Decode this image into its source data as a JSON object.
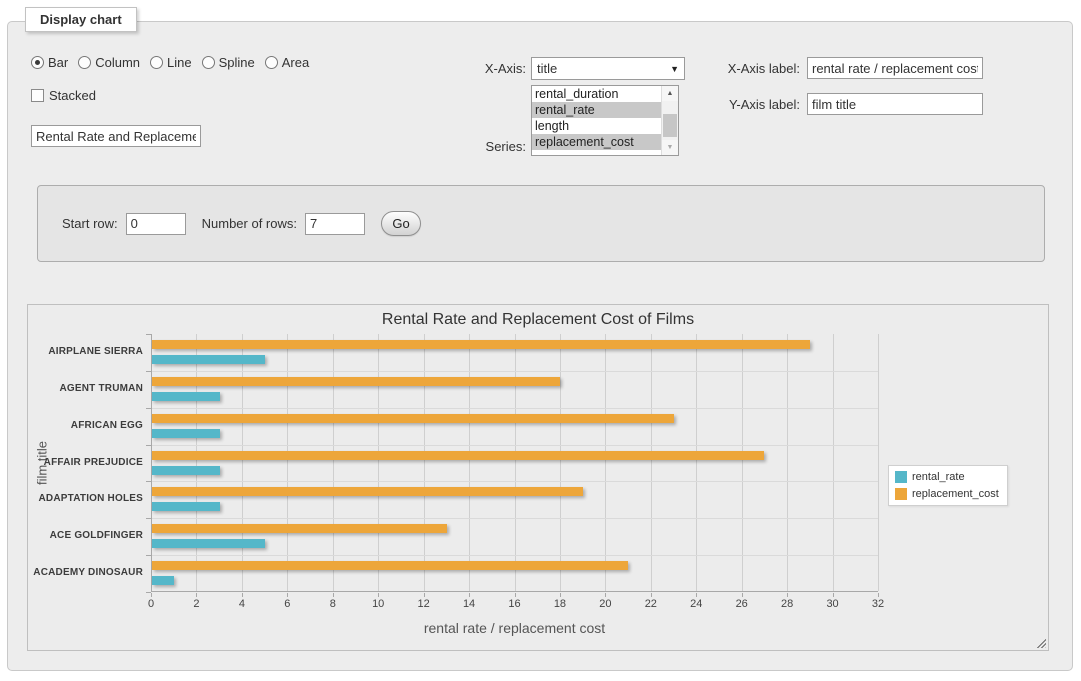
{
  "panel": {
    "title": "Display chart"
  },
  "controls": {
    "chart_types": [
      {
        "label": "Bar",
        "checked": true
      },
      {
        "label": "Column",
        "checked": false
      },
      {
        "label": "Line",
        "checked": false
      },
      {
        "label": "Spline",
        "checked": false
      },
      {
        "label": "Area",
        "checked": false
      }
    ],
    "stacked_label": "Stacked",
    "stacked_checked": false,
    "chart_title_value": "Rental Rate and Replacement Cost of Films",
    "x_axis": {
      "label": "X-Axis:",
      "selected": "title"
    },
    "series": {
      "label": "Series:",
      "options": [
        {
          "label": "rental_duration",
          "selected": false
        },
        {
          "label": "rental_rate",
          "selected": true
        },
        {
          "label": "length",
          "selected": false
        },
        {
          "label": "replacement_cost",
          "selected": true
        }
      ]
    },
    "x_axis_label": {
      "label": "X-Axis label:",
      "value": "rental rate / replacement cost"
    },
    "y_axis_label": {
      "label": "Y-Axis label:",
      "value": "film title"
    }
  },
  "row_controls": {
    "start_row_label": "Start row:",
    "start_row_value": "0",
    "num_rows_label": "Number of rows:",
    "num_rows_value": "7",
    "go_label": "Go"
  },
  "chart_data": {
    "type": "bar",
    "title": "Rental Rate and Replacement Cost of Films",
    "xlabel": "rental rate / replacement cost",
    "ylabel": "film title",
    "categories": [
      "AIRPLANE SIERRA",
      "AGENT TRUMAN",
      "AFRICAN EGG",
      "AFFAIR PREJUDICE",
      "ADAPTATION HOLES",
      "ACE GOLDFINGER",
      "ACADEMY DINOSAUR"
    ],
    "series": [
      {
        "name": "rental_rate",
        "color": "#55b7c9",
        "values": [
          4.99,
          2.99,
          2.99,
          2.99,
          2.99,
          4.99,
          0.99
        ]
      },
      {
        "name": "replacement_cost",
        "color": "#eda63a",
        "values": [
          28.99,
          17.99,
          22.99,
          26.99,
          18.99,
          12.99,
          20.99
        ]
      }
    ],
    "xlim": [
      0,
      32
    ],
    "xticks": [
      0,
      2,
      4,
      6,
      8,
      10,
      12,
      14,
      16,
      18,
      20,
      22,
      24,
      26,
      28,
      30,
      32
    ],
    "grid": true,
    "legend_position": "right"
  }
}
